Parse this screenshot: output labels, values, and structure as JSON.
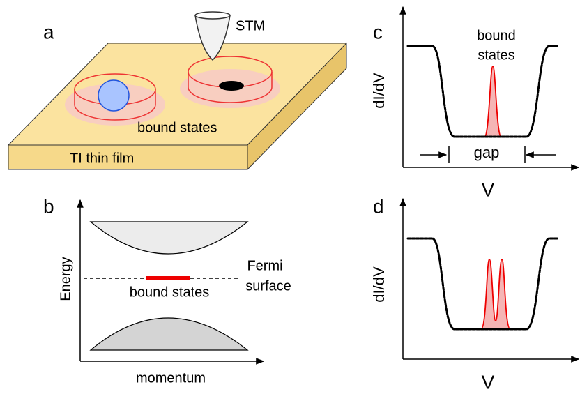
{
  "panel_a": {
    "label": "a",
    "tip": "STM",
    "states": "bound states",
    "film": "TI thin film"
  },
  "panel_b": {
    "label": "b",
    "y_axis": "Energy",
    "x_axis": "momentum",
    "states": "bound states",
    "fermi_line1": "Fermi",
    "fermi_line2": "surface"
  },
  "panel_c": {
    "label": "c",
    "states_line1": "bound",
    "states_line2": "states",
    "y_axis": "dI/dV",
    "gap": "gap",
    "x_axis": "V"
  },
  "panel_d": {
    "label": "d",
    "y_axis": "dI/dV",
    "x_axis": "V"
  }
}
